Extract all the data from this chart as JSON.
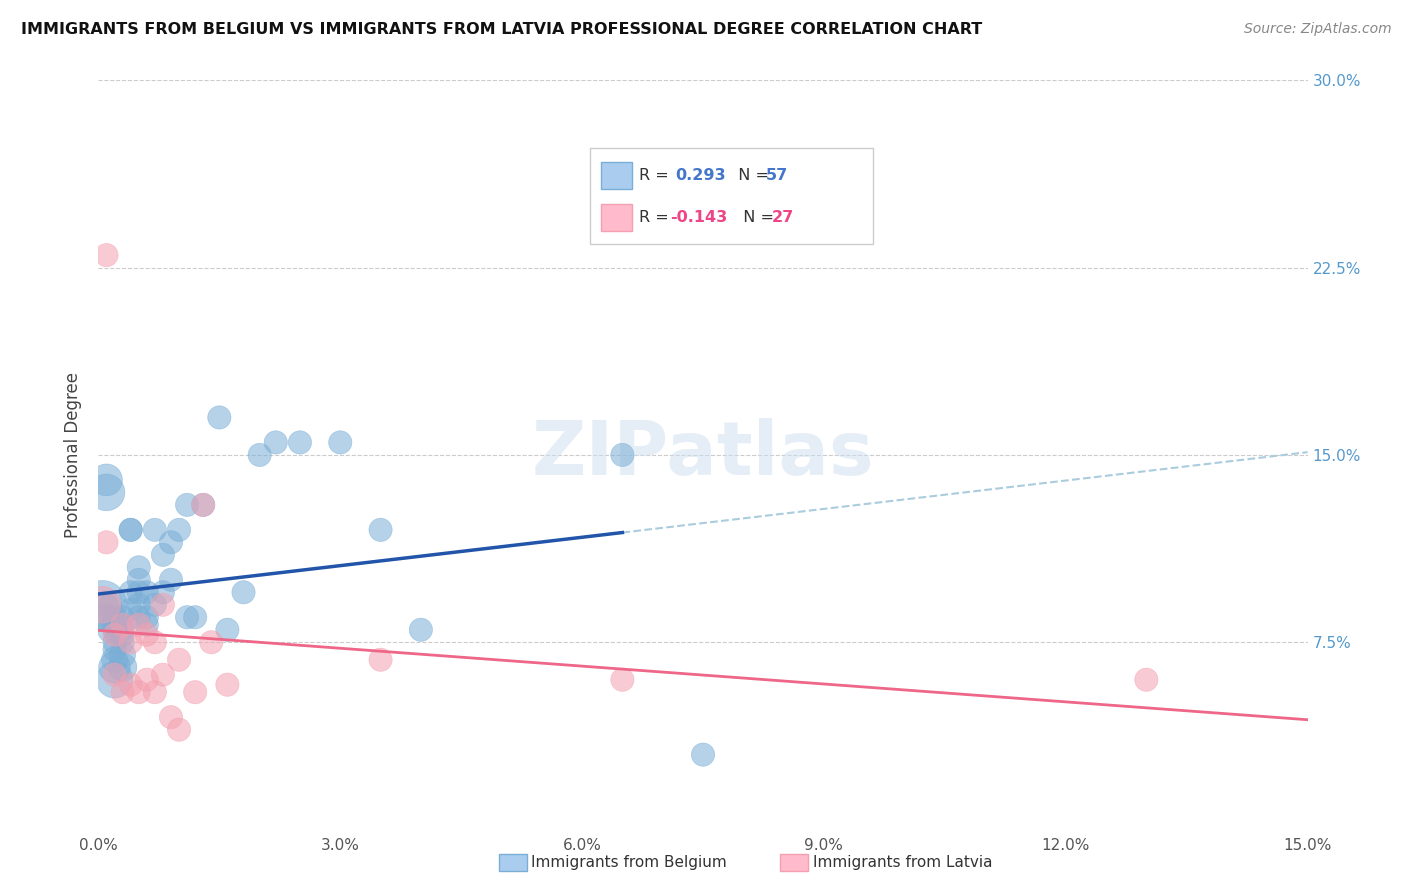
{
  "title": "IMMIGRANTS FROM BELGIUM VS IMMIGRANTS FROM LATVIA PROFESSIONAL DEGREE CORRELATION CHART",
  "source": "Source: ZipAtlas.com",
  "ylabel": "Professional Degree",
  "xlim": [
    0.0,
    0.15
  ],
  "ylim": [
    0.0,
    0.3
  ],
  "belgium_color": "#7aaed6",
  "latvia_color": "#f4a0b0",
  "belgium_line_color": "#2255aa",
  "latvia_line_color": "#ee6688",
  "dashed_line_color": "#aaccdd",
  "watermark": "ZIPatlas",
  "belgium_x": [
    0.0005,
    0.001,
    0.001,
    0.001,
    0.001,
    0.0015,
    0.0015,
    0.0015,
    0.002,
    0.002,
    0.002,
    0.002,
    0.002,
    0.002,
    0.002,
    0.002,
    0.003,
    0.003,
    0.003,
    0.003,
    0.003,
    0.003,
    0.003,
    0.004,
    0.004,
    0.004,
    0.004,
    0.005,
    0.005,
    0.005,
    0.005,
    0.005,
    0.006,
    0.006,
    0.006,
    0.007,
    0.007,
    0.008,
    0.008,
    0.009,
    0.009,
    0.01,
    0.011,
    0.011,
    0.012,
    0.013,
    0.015,
    0.016,
    0.018,
    0.02,
    0.022,
    0.025,
    0.03,
    0.035,
    0.04,
    0.065,
    0.075
  ],
  "belgium_y": [
    0.09,
    0.135,
    0.14,
    0.085,
    0.09,
    0.08,
    0.085,
    0.09,
    0.06,
    0.065,
    0.068,
    0.072,
    0.075,
    0.08,
    0.082,
    0.085,
    0.065,
    0.07,
    0.075,
    0.078,
    0.08,
    0.082,
    0.085,
    0.088,
    0.095,
    0.12,
    0.12,
    0.085,
    0.09,
    0.095,
    0.1,
    0.105,
    0.082,
    0.085,
    0.095,
    0.09,
    0.12,
    0.095,
    0.11,
    0.1,
    0.115,
    0.12,
    0.085,
    0.13,
    0.085,
    0.13,
    0.165,
    0.08,
    0.095,
    0.15,
    0.155,
    0.155,
    0.155,
    0.12,
    0.08,
    0.15,
    0.03
  ],
  "belgium_size": [
    350,
    200,
    150,
    100,
    80,
    100,
    80,
    80,
    200,
    150,
    100,
    80,
    80,
    80,
    80,
    80,
    120,
    100,
    80,
    80,
    80,
    80,
    80,
    80,
    80,
    80,
    80,
    80,
    80,
    80,
    80,
    80,
    80,
    80,
    80,
    80,
    80,
    80,
    80,
    80,
    80,
    80,
    80,
    80,
    80,
    80,
    80,
    80,
    80,
    80,
    80,
    80,
    80,
    80,
    80,
    80,
    80
  ],
  "latvia_x": [
    0.0005,
    0.001,
    0.001,
    0.002,
    0.002,
    0.003,
    0.003,
    0.004,
    0.004,
    0.005,
    0.005,
    0.006,
    0.006,
    0.007,
    0.007,
    0.008,
    0.008,
    0.009,
    0.01,
    0.01,
    0.012,
    0.013,
    0.014,
    0.016,
    0.035,
    0.065,
    0.13
  ],
  "latvia_y": [
    0.09,
    0.115,
    0.23,
    0.078,
    0.062,
    0.082,
    0.055,
    0.075,
    0.058,
    0.082,
    0.055,
    0.078,
    0.06,
    0.075,
    0.055,
    0.09,
    0.062,
    0.045,
    0.068,
    0.04,
    0.055,
    0.13,
    0.075,
    0.058,
    0.068,
    0.06,
    0.06
  ],
  "latvia_size": [
    200,
    80,
    80,
    80,
    80,
    80,
    80,
    80,
    80,
    80,
    80,
    80,
    80,
    80,
    80,
    80,
    80,
    80,
    80,
    80,
    80,
    80,
    80,
    80,
    80,
    80,
    80
  ]
}
